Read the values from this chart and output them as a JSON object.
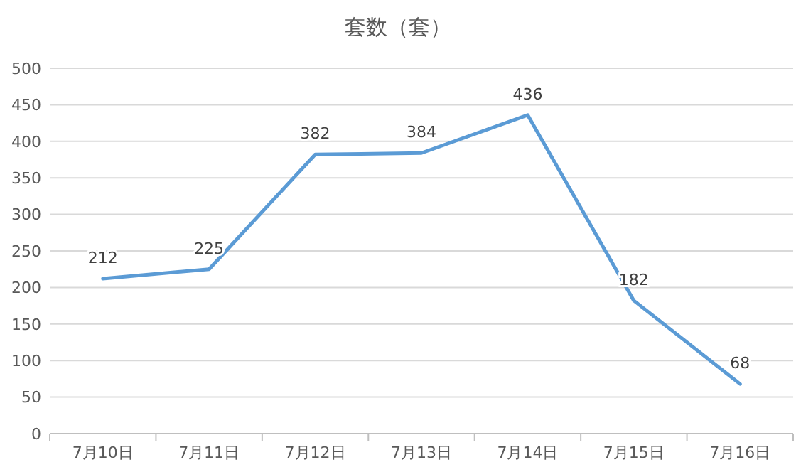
{
  "chart_data": {
    "type": "line",
    "title": "套数（套）",
    "categories": [
      "7月10日",
      "7月11日",
      "7月12日",
      "7月13日",
      "7月14日",
      "7月15日",
      "7月16日"
    ],
    "series": [
      {
        "color": "#5b9bd5",
        "values": [
          212,
          225,
          382,
          384,
          436,
          182,
          68
        ]
      }
    ],
    "ylim": [
      0,
      500
    ],
    "yticks": [
      0,
      50,
      100,
      150,
      200,
      250,
      300,
      350,
      400,
      450,
      500
    ],
    "grid": "y",
    "data_labels": true,
    "marker": "none",
    "line_style": "solid"
  }
}
